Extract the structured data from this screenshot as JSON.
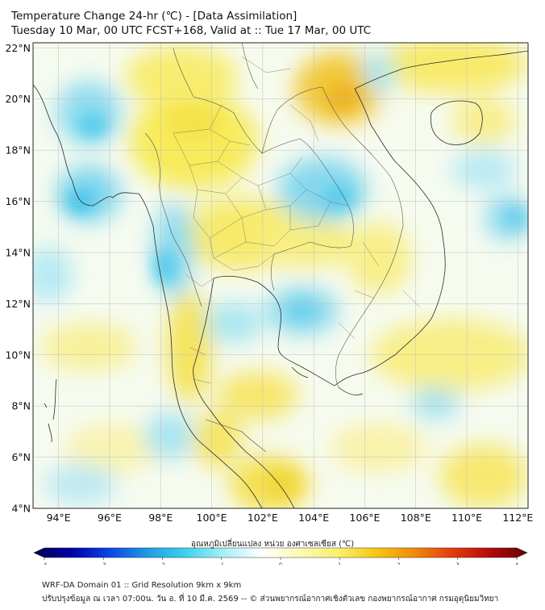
{
  "header": {
    "title_line1": "Temperature Change 24-hr (℃) - [Data Assimilation]",
    "title_line2": "Tuesday 10 Mar, 00 UTC FCST+168, Valid at :: Tue 17 Mar, 00 UTC"
  },
  "map": {
    "lat_labels": [
      "22°N",
      "20°N",
      "18°N",
      "16°N",
      "14°N",
      "12°N",
      "10°N",
      "8°N",
      "6°N",
      "4°N"
    ],
    "lat_values": [
      22,
      20,
      18,
      16,
      14,
      12,
      10,
      8,
      6,
      4
    ],
    "lon_labels": [
      "94°E",
      "96°E",
      "98°E",
      "100°E",
      "102°E",
      "104°E",
      "106°E",
      "108°E",
      "110°E",
      "112°E"
    ],
    "lon_values": [
      94,
      96,
      98,
      100,
      102,
      104,
      106,
      108,
      110,
      112
    ],
    "lat_range": [
      4,
      22.2
    ],
    "lon_range": [
      93,
      112.4
    ],
    "grid": true
  },
  "colorbar": {
    "label": "อุณหภูมิเปลี่ยนแปลง หน่วย องศาเซลเซียส (℃)",
    "ticks": [
      "-4",
      "-3",
      "-2",
      "-1",
      "0",
      "1",
      "2",
      "3",
      "4"
    ],
    "tick_values": [
      -4,
      -3,
      -2,
      -1,
      0,
      1,
      2,
      3,
      4
    ],
    "colors": [
      "#00004a",
      "#0000a8",
      "#0a46e6",
      "#1e9be6",
      "#3cd2ee",
      "#a8eef6",
      "#ffffff",
      "#fafab4",
      "#faf06e",
      "#f5c814",
      "#f08c0a",
      "#e63c0a",
      "#b40a0a",
      "#640000"
    ]
  },
  "footer": {
    "line1": "WRF-DA Domain 01 :: Grid Resolution 9km x 9km",
    "line2": "ปรับปรุงข้อมูล ณ เวลา 07:00น. วัน อ. ที่ 10 มี.ค. 2569 -- © ส่วนพยากรณ์อากาศเชิงตัวเลข กองพยากรณ์อากาศ กรมอุตุนิยมวิทยา"
  }
}
